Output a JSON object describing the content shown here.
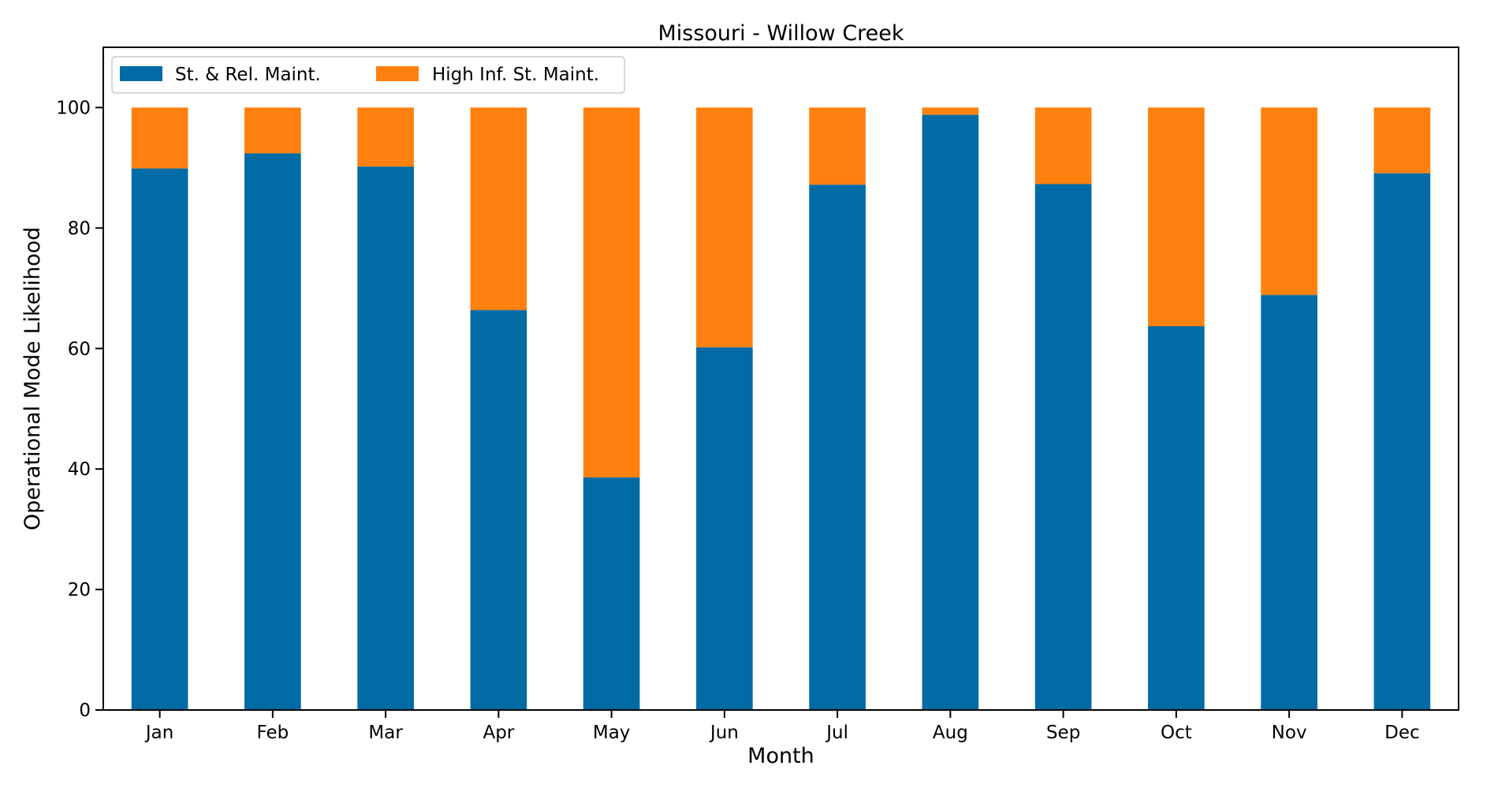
{
  "chart_data": {
    "type": "bar",
    "stacked": true,
    "title": "Missouri - Willow Creek",
    "xlabel": "Month",
    "ylabel": "Operational Mode Likelihood",
    "ylim": [
      0,
      110
    ],
    "yticks": [
      0,
      20,
      40,
      60,
      80,
      100
    ],
    "grid": false,
    "legend_position": "top-left",
    "categories": [
      "Jan",
      "Feb",
      "Mar",
      "Apr",
      "May",
      "Jun",
      "Jul",
      "Aug",
      "Sep",
      "Oct",
      "Nov",
      "Dec"
    ],
    "series": [
      {
        "name": "St. & Rel. Maint.",
        "color": "#006BA4",
        "values": [
          89.9,
          92.4,
          90.2,
          66.4,
          38.6,
          60.2,
          87.2,
          98.8,
          87.3,
          63.7,
          68.9,
          89.1
        ]
      },
      {
        "name": "High Inf. St. Maint.",
        "color": "#FF800E",
        "values": [
          10.1,
          7.6,
          9.8,
          33.6,
          61.4,
          39.8,
          12.8,
          1.2,
          12.7,
          36.3,
          31.1,
          10.9
        ]
      }
    ]
  }
}
